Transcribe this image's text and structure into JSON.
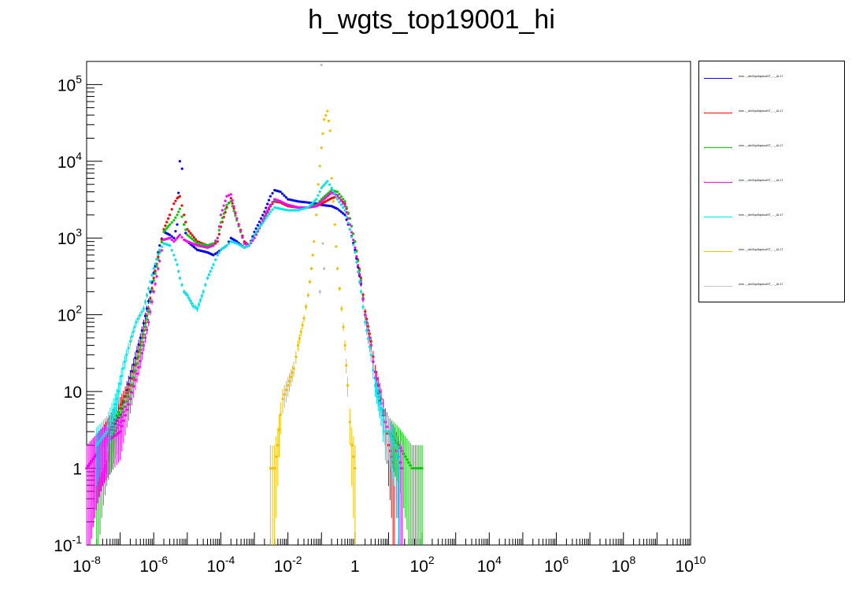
{
  "chart_data": {
    "type": "scatter",
    "title": "h_wgts_top19001_hi",
    "xlabel": "",
    "ylabel": "",
    "x_scale": "log",
    "y_scale": "log",
    "xlim": [
      1e-08,
      10000000000.0
    ],
    "ylim": [
      0.1,
      200000
    ],
    "grid": false,
    "legend_position": "right",
    "x_ticks": [
      {
        "base": "10",
        "exp": "-8"
      },
      {
        "base": "10",
        "exp": "-6"
      },
      {
        "base": "10",
        "exp": "-4"
      },
      {
        "base": "10",
        "exp": "-2"
      },
      {
        "base": "1",
        "exp": ""
      },
      {
        "base": "10",
        "exp": "2"
      },
      {
        "base": "10",
        "exp": "4"
      },
      {
        "base": "10",
        "exp": "6"
      },
      {
        "base": "10",
        "exp": "8"
      },
      {
        "base": "10",
        "exp": "10"
      }
    ],
    "y_ticks": [
      {
        "base": "10",
        "exp": "-1"
      },
      {
        "base": "1",
        "exp": ""
      },
      {
        "base": "10",
        "exp": ""
      },
      {
        "base": "10",
        "exp": "2"
      },
      {
        "base": "10",
        "exp": "3"
      },
      {
        "base": "10",
        "exp": "4"
      },
      {
        "base": "10",
        "exp": "5"
      }
    ],
    "series": [
      {
        "color": "#0000ff",
        "legend": "mlm..._dimTopMaptoolST_..._UL17",
        "points": [
          [
            1e-08,
            1
          ],
          [
            3e-08,
            2
          ],
          [
            1e-07,
            5
          ],
          [
            2e-07,
            15
          ],
          [
            4e-07,
            50
          ],
          [
            7e-07,
            150
          ],
          [
            1e-06,
            350
          ],
          [
            1.5e-06,
            800
          ],
          [
            2e-06,
            1200
          ],
          [
            3e-06,
            1100
          ],
          [
            4e-06,
            1000
          ],
          [
            5e-06,
            1500
          ],
          [
            6e-06,
            10000
          ],
          [
            7e-06,
            8000
          ],
          [
            8e-06,
            1500
          ],
          [
            1e-05,
            900
          ],
          [
            2e-05,
            700
          ],
          [
            4e-05,
            650
          ],
          [
            6e-05,
            600
          ],
          [
            8e-05,
            650
          ],
          [
            0.0001,
            700
          ],
          [
            0.00015,
            800
          ],
          [
            0.0002,
            1000
          ],
          [
            0.0003,
            900
          ],
          [
            0.0005,
            750
          ],
          [
            0.0007,
            800
          ],
          [
            0.001,
            1200
          ],
          [
            0.002,
            2200
          ],
          [
            0.003,
            3500
          ],
          [
            0.004,
            4200
          ],
          [
            0.006,
            4000
          ],
          [
            0.01,
            3200
          ],
          [
            0.02,
            3000
          ],
          [
            0.04,
            2900
          ],
          [
            0.07,
            2800
          ],
          [
            0.1,
            2700
          ],
          [
            0.2,
            2600
          ],
          [
            0.3,
            2400
          ],
          [
            0.5,
            2000
          ],
          [
            0.7,
            1300
          ],
          [
            1,
            700
          ],
          [
            1.5,
            250
          ],
          [
            2,
            100
          ],
          [
            3,
            40
          ],
          [
            4,
            15
          ],
          [
            6,
            6
          ],
          [
            8,
            4
          ],
          [
            10,
            3
          ],
          [
            15,
            2
          ],
          [
            20,
            1
          ]
        ]
      },
      {
        "color": "#ff0000",
        "legend": "mlm..._dimTopMaptoolST_..._UL17",
        "points": [
          [
            1e-08,
            1
          ],
          [
            3e-08,
            2
          ],
          [
            1e-07,
            6
          ],
          [
            2e-07,
            12
          ],
          [
            4e-07,
            40
          ],
          [
            7e-07,
            120
          ],
          [
            1e-06,
            300
          ],
          [
            1.5e-06,
            700
          ],
          [
            2e-06,
            1300
          ],
          [
            3e-06,
            2000
          ],
          [
            4e-06,
            2800
          ],
          [
            5e-06,
            3300
          ],
          [
            6e-06,
            3500
          ],
          [
            8e-06,
            2000
          ],
          [
            1e-05,
            1300
          ],
          [
            2e-05,
            900
          ],
          [
            4e-05,
            800
          ],
          [
            6e-05,
            800
          ],
          [
            8e-05,
            900
          ],
          [
            0.0001,
            1400
          ],
          [
            0.00015,
            2500
          ],
          [
            0.0002,
            3300
          ],
          [
            0.0003,
            1800
          ],
          [
            0.0005,
            900
          ],
          [
            0.0007,
            800
          ],
          [
            0.001,
            1000
          ],
          [
            0.002,
            1800
          ],
          [
            0.003,
            2600
          ],
          [
            0.004,
            3000
          ],
          [
            0.006,
            2900
          ],
          [
            0.01,
            2600
          ],
          [
            0.02,
            2500
          ],
          [
            0.04,
            2500
          ],
          [
            0.07,
            2600
          ],
          [
            0.1,
            2800
          ],
          [
            0.2,
            3300
          ],
          [
            0.3,
            3500
          ],
          [
            0.5,
            2800
          ],
          [
            0.7,
            1800
          ],
          [
            1,
            900
          ],
          [
            1.5,
            300
          ],
          [
            2,
            110
          ],
          [
            3,
            45
          ],
          [
            4,
            18
          ],
          [
            6,
            8
          ],
          [
            8,
            4
          ],
          [
            10,
            2
          ],
          [
            15,
            1
          ]
        ]
      },
      {
        "color": "#00cc00",
        "legend": "mlm..._dimTopMaptoolST_..._UL17",
        "points": [
          [
            2e-08,
            1
          ],
          [
            4e-08,
            2
          ],
          [
            1e-07,
            4
          ],
          [
            2e-07,
            10
          ],
          [
            4e-07,
            35
          ],
          [
            7e-07,
            110
          ],
          [
            1e-06,
            280
          ],
          [
            1.5e-06,
            650
          ],
          [
            2e-06,
            1200
          ],
          [
            3e-06,
            1500
          ],
          [
            4e-06,
            1700
          ],
          [
            5e-06,
            2000
          ],
          [
            6e-06,
            2400
          ],
          [
            8e-06,
            1500
          ],
          [
            1e-05,
            1100
          ],
          [
            2e-05,
            850
          ],
          [
            4e-05,
            800
          ],
          [
            6e-05,
            850
          ],
          [
            8e-05,
            1000
          ],
          [
            0.0001,
            1600
          ],
          [
            0.00015,
            2700
          ],
          [
            0.0002,
            3000
          ],
          [
            0.0003,
            1700
          ],
          [
            0.0005,
            850
          ],
          [
            0.0007,
            800
          ],
          [
            0.001,
            1000
          ],
          [
            0.002,
            1900
          ],
          [
            0.003,
            2700
          ],
          [
            0.004,
            3100
          ],
          [
            0.006,
            3000
          ],
          [
            0.01,
            2700
          ],
          [
            0.02,
            2500
          ],
          [
            0.04,
            2500
          ],
          [
            0.07,
            2700
          ],
          [
            0.1,
            3200
          ],
          [
            0.2,
            4200
          ],
          [
            0.3,
            4000
          ],
          [
            0.5,
            3000
          ],
          [
            0.7,
            1800
          ],
          [
            1,
            900
          ],
          [
            1.5,
            280
          ],
          [
            2,
            100
          ],
          [
            3,
            40
          ],
          [
            4,
            15
          ],
          [
            6,
            7
          ],
          [
            8,
            4
          ],
          [
            10,
            3
          ],
          [
            20,
            2
          ],
          [
            50,
            1
          ],
          [
            100,
            1
          ]
        ]
      },
      {
        "color": "#ff00ff",
        "legend": "mlm..._dimTopMaptoolST_..._UL17",
        "points": [
          [
            1e-08,
            1
          ],
          [
            3e-08,
            2
          ],
          [
            1e-07,
            3
          ],
          [
            2e-07,
            8
          ],
          [
            4e-07,
            25
          ],
          [
            7e-07,
            80
          ],
          [
            1e-06,
            200
          ],
          [
            1.5e-06,
            500
          ],
          [
            2e-06,
            950
          ],
          [
            3e-06,
            1000
          ],
          [
            4e-06,
            900
          ],
          [
            5e-06,
            1000
          ],
          [
            6e-06,
            1100
          ],
          [
            8e-06,
            950
          ],
          [
            1e-05,
            900
          ],
          [
            2e-05,
            800
          ],
          [
            4e-05,
            750
          ],
          [
            6e-05,
            800
          ],
          [
            8e-05,
            1000
          ],
          [
            0.0001,
            2000
          ],
          [
            0.00015,
            3500
          ],
          [
            0.0002,
            3700
          ],
          [
            0.0003,
            1800
          ],
          [
            0.0005,
            850
          ],
          [
            0.0007,
            800
          ],
          [
            0.001,
            1000
          ],
          [
            0.002,
            1900
          ],
          [
            0.003,
            2700
          ],
          [
            0.004,
            3200
          ],
          [
            0.006,
            3000
          ],
          [
            0.01,
            2700
          ],
          [
            0.02,
            2500
          ],
          [
            0.04,
            2500
          ],
          [
            0.07,
            2600
          ],
          [
            0.1,
            3000
          ],
          [
            0.2,
            3900
          ],
          [
            0.3,
            3600
          ],
          [
            0.5,
            2600
          ],
          [
            0.7,
            1500
          ],
          [
            1,
            750
          ],
          [
            1.5,
            260
          ],
          [
            2,
            100
          ],
          [
            3,
            40
          ],
          [
            4,
            15
          ],
          [
            6,
            7
          ],
          [
            8,
            4
          ],
          [
            10,
            3
          ],
          [
            15,
            2
          ],
          [
            25,
            1
          ]
        ]
      },
      {
        "color": "#00e5e5",
        "legend": "mlm..._dimTopMaptoolST_..._UL17",
        "points": [
          [
            2e-08,
            2
          ],
          [
            4e-08,
            3
          ],
          [
            8e-08,
            8
          ],
          [
            1.2e-07,
            20
          ],
          [
            2e-07,
            45
          ],
          [
            3e-07,
            80
          ],
          [
            5e-07,
            120
          ],
          [
            7e-07,
            220
          ],
          [
            1e-06,
            400
          ],
          [
            1.5e-06,
            700
          ],
          [
            2e-06,
            850
          ],
          [
            3e-06,
            800
          ],
          [
            4e-06,
            600
          ],
          [
            5e-06,
            450
          ],
          [
            6e-06,
            300
          ],
          [
            8e-06,
            200
          ],
          [
            1e-05,
            180
          ],
          [
            1.5e-05,
            130
          ],
          [
            2e-05,
            120
          ],
          [
            3e-05,
            200
          ],
          [
            4e-05,
            300
          ],
          [
            6e-05,
            450
          ],
          [
            8e-05,
            600
          ],
          [
            0.0001,
            700
          ],
          [
            0.00015,
            800
          ],
          [
            0.0002,
            900
          ],
          [
            0.0003,
            850
          ],
          [
            0.0005,
            750
          ],
          [
            0.0007,
            800
          ],
          [
            0.001,
            1100
          ],
          [
            0.002,
            1700
          ],
          [
            0.003,
            2200
          ],
          [
            0.004,
            2500
          ],
          [
            0.006,
            2400
          ],
          [
            0.01,
            2300
          ],
          [
            0.02,
            2300
          ],
          [
            0.04,
            2500
          ],
          [
            0.07,
            3200
          ],
          [
            0.1,
            4500
          ],
          [
            0.15,
            5500
          ],
          [
            0.2,
            4500
          ],
          [
            0.3,
            3200
          ],
          [
            0.5,
            2300
          ],
          [
            0.7,
            1300
          ],
          [
            1,
            650
          ],
          [
            1.5,
            200
          ],
          [
            2,
            80
          ],
          [
            3,
            30
          ],
          [
            4,
            12
          ],
          [
            6,
            6
          ],
          [
            8,
            3
          ],
          [
            10,
            3
          ],
          [
            15,
            2
          ],
          [
            20,
            1
          ]
        ]
      },
      {
        "color": "#f0c000",
        "legend": "mlm..._dimTopMaptoolST_..._UL17",
        "points": [
          [
            0.003,
            1
          ],
          [
            0.004,
            1
          ],
          [
            0.005,
            2
          ],
          [
            0.006,
            5
          ],
          [
            0.007,
            8
          ],
          [
            0.01,
            12
          ],
          [
            0.015,
            20
          ],
          [
            0.02,
            40
          ],
          [
            0.03,
            90
          ],
          [
            0.04,
            180
          ],
          [
            0.05,
            400
          ],
          [
            0.06,
            900
          ],
          [
            0.07,
            2000
          ],
          [
            0.08,
            5000
          ],
          [
            0.1,
            15000
          ],
          [
            0.12,
            35000
          ],
          [
            0.15,
            45000
          ],
          [
            0.18,
            25000
          ],
          [
            0.2,
            6000
          ],
          [
            0.25,
            1500
          ],
          [
            0.3,
            400
          ],
          [
            0.4,
            120
          ],
          [
            0.5,
            40
          ],
          [
            0.6,
            12
          ],
          [
            0.7,
            4
          ],
          [
            0.8,
            2
          ],
          [
            1,
            1
          ]
        ]
      },
      {
        "color": "#c0c0c0",
        "legend": "mlm..._dimTopMaptoolST_..._UL17",
        "points": [
          [
            0.09,
            200
          ],
          [
            0.1,
            180000
          ],
          [
            0.11,
            850
          ],
          [
            0.12,
            400
          ]
        ]
      }
    ]
  }
}
